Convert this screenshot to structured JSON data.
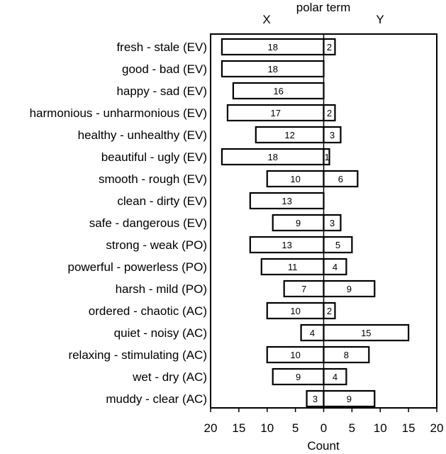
{
  "chart_data": {
    "type": "bar",
    "orientation": "horizontal-diverging",
    "title": "polar term",
    "xlabel": "Count",
    "left_group_label": "X",
    "right_group_label": "Y",
    "xlim": [
      -20,
      20
    ],
    "x_ticks": [
      -20,
      -15,
      -10,
      -5,
      0,
      5,
      10,
      15,
      20
    ],
    "x_tick_labels": [
      "20",
      "15",
      "10",
      "5",
      "0",
      "5",
      "10",
      "15",
      "20"
    ],
    "categories": [
      "fresh - stale (EV)",
      "good - bad (EV)",
      "happy - sad (EV)",
      "harmonious - unharmonious (EV)",
      "healthy - unhealthy (EV)",
      "beautiful - ugly (EV)",
      "smooth - rough (EV)",
      "clean - dirty (EV)",
      "safe - dangerous (EV)",
      "strong - weak (PO)",
      "powerful - powerless (PO)",
      "harsh - mild (PO)",
      "ordered - chaotic (AC)",
      "quiet - noisy (AC)",
      "relaxing - stimulating (AC)",
      "wet - dry (AC)",
      "muddy - clear (AC)"
    ],
    "series": [
      {
        "name": "X",
        "values": [
          18,
          18,
          16,
          17,
          12,
          18,
          10,
          13,
          9,
          13,
          11,
          7,
          10,
          4,
          10,
          9,
          3
        ]
      },
      {
        "name": "Y",
        "values": [
          2,
          0,
          0,
          2,
          3,
          1,
          6,
          0,
          3,
          5,
          4,
          9,
          2,
          15,
          8,
          4,
          9
        ]
      }
    ],
    "value_labels": {
      "X": [
        "18",
        "18",
        "16",
        "17",
        "12",
        "18",
        "10",
        "13",
        "9",
        "13",
        "11",
        "7",
        "10",
        "4",
        "10",
        "9",
        "3"
      ],
      "Y": [
        "2",
        "",
        "",
        "2",
        "3",
        "1",
        "6",
        "",
        "3",
        "5",
        "4",
        "9",
        "2",
        "15",
        "8",
        "4",
        "9"
      ]
    },
    "grid": false
  }
}
